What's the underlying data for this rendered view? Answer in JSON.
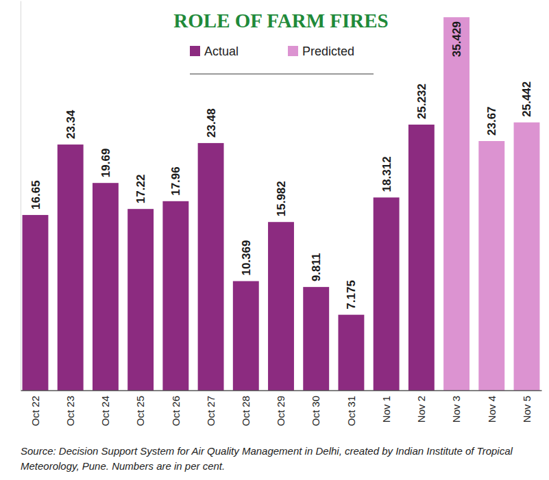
{
  "chart_data": {
    "type": "bar",
    "title": "ROLE OF FARM FIRES",
    "categories": [
      "Oct 22",
      "Oct 23",
      "Oct 24",
      "Oct 25",
      "Oct 26",
      "Oct 27",
      "Oct 28",
      "Oct 29",
      "Oct 30",
      "Oct 31",
      "Nov 1",
      "Nov 2",
      "Nov 3",
      "Nov 4",
      "Nov 5"
    ],
    "series": [
      {
        "name": "Actual",
        "color": "#8c2b80",
        "values": [
          16.65,
          23.34,
          19.69,
          17.22,
          17.96,
          23.48,
          10.369,
          15.982,
          9.811,
          7.175,
          18.312,
          25.232,
          null,
          null,
          null
        ]
      },
      {
        "name": "Predicted",
        "color": "#dc93d1",
        "values": [
          null,
          null,
          null,
          null,
          null,
          null,
          null,
          null,
          null,
          null,
          null,
          null,
          35.429,
          23.67,
          25.442
        ]
      }
    ],
    "ylim": [
      0,
      37
    ],
    "yticks": [
      0
    ],
    "tick_labels": "x",
    "data_labels": true,
    "legend": "top",
    "annotations": [
      "Source: Decision Support System for Air Quality Management in Delhi, created by Indian Institute of Tropical Meteorology, Pune. Numbers are in per cent."
    ]
  }
}
